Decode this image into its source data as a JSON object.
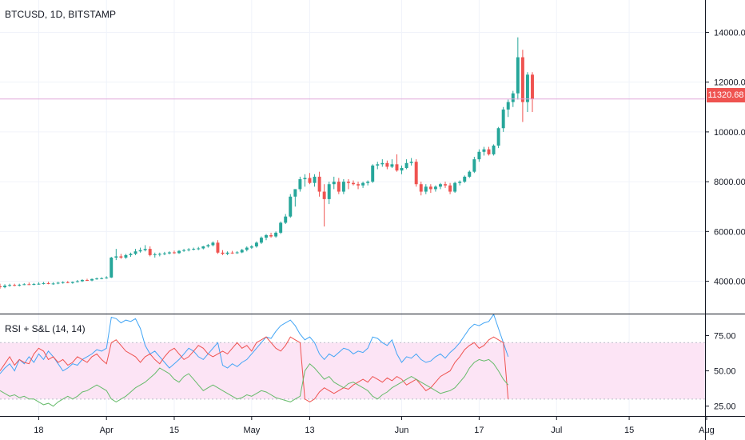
{
  "header": {
    "symbol_title": "BTCUSD, 1D, BITSTAMP"
  },
  "indicator": {
    "title": "RSI + S&L (14, 14)"
  },
  "colors": {
    "up": "#26a69a",
    "down": "#ef5350",
    "rsi": "#42a5f5",
    "strength": "#ef5350",
    "weakness": "#66bb6a",
    "band": "#fce4f5",
    "last_line": "#e1a8d9"
  },
  "chart_data": [
    {
      "type": "candlestick",
      "title": "BTCUSD, 1D, BITSTAMP",
      "x": [
        "Mar 10",
        "Mar 11",
        "Mar 12",
        "Mar 13",
        "Mar 14",
        "Mar 15",
        "Mar 16",
        "Mar 17",
        "Mar 18",
        "Mar 19",
        "Mar 20",
        "Mar 21",
        "Mar 22",
        "Mar 23",
        "Mar 24",
        "Mar 25",
        "Mar 26",
        "Mar 27",
        "Mar 28",
        "Mar 29",
        "Mar 30",
        "Mar 31",
        "Apr 1",
        "Apr 2",
        "Apr 3",
        "Apr 4",
        "Apr 5",
        "Apr 6",
        "Apr 7",
        "Apr 8",
        "Apr 9",
        "Apr 10",
        "Apr 11",
        "Apr 12",
        "Apr 13",
        "Apr 14",
        "Apr 15",
        "Apr 16",
        "Apr 17",
        "Apr 18",
        "Apr 19",
        "Apr 20",
        "Apr 21",
        "Apr 22",
        "Apr 23",
        "Apr 24",
        "Apr 25",
        "Apr 26",
        "Apr 27",
        "Apr 28",
        "Apr 29",
        "Apr 30",
        "May 1",
        "May 2",
        "May 3",
        "May 4",
        "May 5",
        "May 6",
        "May 7",
        "May 8",
        "May 9",
        "May 10",
        "May 11",
        "May 12",
        "May 13",
        "May 14",
        "May 15",
        "May 16",
        "May 17",
        "May 18",
        "May 19",
        "May 20",
        "May 21",
        "May 22",
        "May 23",
        "May 24",
        "May 25",
        "May 26",
        "May 27",
        "May 28",
        "May 29",
        "May 30",
        "May 31",
        "Jun 1",
        "Jun 2",
        "Jun 3",
        "Jun 4",
        "Jun 5",
        "Jun 6",
        "Jun 7",
        "Jun 8",
        "Jun 9",
        "Jun 10",
        "Jun 11",
        "Jun 12",
        "Jun 13",
        "Jun 14",
        "Jun 15",
        "Jun 16",
        "Jun 17",
        "Jun 18",
        "Jun 19",
        "Jun 20",
        "Jun 21",
        "Jun 22",
        "Jun 23",
        "Jun 24",
        "Jun 25",
        "Jun 26",
        "Jun 27",
        "Jun 28",
        "Jun 29"
      ],
      "ohlc": [
        [
          3800,
          3900,
          3700,
          3760
        ],
        [
          3760,
          3880,
          3720,
          3820
        ],
        [
          3820,
          3900,
          3780,
          3850
        ],
        [
          3850,
          3900,
          3800,
          3830
        ],
        [
          3830,
          3900,
          3790,
          3860
        ],
        [
          3860,
          3920,
          3840,
          3880
        ],
        [
          3880,
          3950,
          3850,
          3870
        ],
        [
          3870,
          3930,
          3840,
          3890
        ],
        [
          3890,
          3960,
          3860,
          3900
        ],
        [
          3900,
          3970,
          3870,
          3920
        ],
        [
          3920,
          3980,
          3880,
          3890
        ],
        [
          3890,
          3960,
          3860,
          3910
        ],
        [
          3910,
          3980,
          3880,
          3940
        ],
        [
          3940,
          4000,
          3900,
          3960
        ],
        [
          3960,
          4010,
          3920,
          3930
        ],
        [
          3930,
          3990,
          3900,
          3970
        ],
        [
          3970,
          4050,
          3950,
          4000
        ],
        [
          4000,
          4080,
          3970,
          4050
        ],
        [
          4050,
          4100,
          4010,
          4030
        ],
        [
          4030,
          4110,
          4000,
          4090
        ],
        [
          4090,
          4150,
          4060,
          4110
        ],
        [
          4110,
          4160,
          4080,
          4120
        ],
        [
          4120,
          4200,
          4100,
          4150
        ],
        [
          4150,
          4980,
          4130,
          4950
        ],
        [
          4950,
          5300,
          4850,
          5000
        ],
        [
          5000,
          5100,
          4900,
          4950
        ],
        [
          4950,
          5100,
          4900,
          5050
        ],
        [
          5050,
          5150,
          4980,
          5100
        ],
        [
          5100,
          5300,
          5050,
          5200
        ],
        [
          5200,
          5350,
          5150,
          5250
        ],
        [
          5250,
          5450,
          5200,
          5300
        ],
        [
          5300,
          5400,
          5000,
          5050
        ],
        [
          5050,
          5150,
          4950,
          5080
        ],
        [
          5080,
          5150,
          5000,
          5100
        ],
        [
          5100,
          5180,
          5050,
          5120
        ],
        [
          5120,
          5200,
          5080,
          5160
        ],
        [
          5160,
          5230,
          5100,
          5130
        ],
        [
          5130,
          5250,
          5100,
          5220
        ],
        [
          5220,
          5300,
          5180,
          5250
        ],
        [
          5250,
          5330,
          5200,
          5280
        ],
        [
          5280,
          5350,
          5240,
          5300
        ],
        [
          5300,
          5380,
          5250,
          5320
        ],
        [
          5320,
          5420,
          5280,
          5400
        ],
        [
          5400,
          5500,
          5350,
          5450
        ],
        [
          5450,
          5600,
          5400,
          5550
        ],
        [
          5550,
          5650,
          5100,
          5150
        ],
        [
          5150,
          5250,
          5050,
          5100
        ],
        [
          5100,
          5200,
          5050,
          5150
        ],
        [
          5150,
          5220,
          5100,
          5130
        ],
        [
          5130,
          5210,
          5100,
          5160
        ],
        [
          5160,
          5300,
          5130,
          5260
        ],
        [
          5260,
          5400,
          5200,
          5350
        ],
        [
          5350,
          5450,
          5300,
          5400
        ],
        [
          5400,
          5600,
          5350,
          5550
        ],
        [
          5550,
          5800,
          5500,
          5750
        ],
        [
          5750,
          5900,
          5650,
          5850
        ],
        [
          5850,
          5950,
          5750,
          5800
        ],
        [
          5800,
          6000,
          5750,
          5950
        ],
        [
          5950,
          6400,
          5900,
          6350
        ],
        [
          6350,
          6700,
          6300,
          6600
        ],
        [
          6600,
          7500,
          6550,
          7400
        ],
        [
          7400,
          7700,
          7000,
          7700
        ],
        [
          7700,
          8200,
          7600,
          8100
        ],
        [
          8100,
          8300,
          7800,
          8150
        ],
        [
          8150,
          8350,
          7900,
          7950
        ],
        [
          7950,
          8300,
          7800,
          8200
        ],
        [
          8200,
          8400,
          7400,
          7600
        ],
        [
          7600,
          7900,
          6200,
          7300
        ],
        [
          7300,
          8000,
          7100,
          7900
        ],
        [
          7900,
          8200,
          7700,
          8000
        ],
        [
          8000,
          8150,
          7500,
          7600
        ],
        [
          7600,
          8100,
          7500,
          8000
        ],
        [
          8000,
          8100,
          7700,
          7950
        ],
        [
          7950,
          8050,
          7850,
          7900
        ],
        [
          7900,
          8000,
          7700,
          7850
        ],
        [
          7850,
          8000,
          7750,
          7950
        ],
        [
          7950,
          8050,
          7850,
          8000
        ],
        [
          8000,
          8700,
          7950,
          8650
        ],
        [
          8650,
          8800,
          8500,
          8700
        ],
        [
          8700,
          8900,
          8600,
          8750
        ],
        [
          8750,
          8850,
          8500,
          8600
        ],
        [
          8600,
          8900,
          8550,
          8700
        ],
        [
          8700,
          9100,
          8400,
          8450
        ],
        [
          8450,
          8650,
          8300,
          8550
        ],
        [
          8550,
          8900,
          8500,
          8750
        ],
        [
          8750,
          8950,
          8650,
          8800
        ],
        [
          8800,
          8900,
          7800,
          7900
        ],
        [
          7900,
          8000,
          7450,
          7600
        ],
        [
          7600,
          7900,
          7500,
          7800
        ],
        [
          7800,
          7900,
          7550,
          7700
        ],
        [
          7700,
          7850,
          7600,
          7800
        ],
        [
          7800,
          7950,
          7700,
          7900
        ],
        [
          7900,
          8000,
          7750,
          7850
        ],
        [
          7850,
          7950,
          7500,
          7600
        ],
        [
          7600,
          8000,
          7550,
          7950
        ],
        [
          7950,
          8050,
          7850,
          8000
        ],
        [
          8000,
          8250,
          7950,
          8200
        ],
        [
          8200,
          8450,
          8150,
          8400
        ],
        [
          8400,
          9000,
          8350,
          8900
        ],
        [
          8900,
          9300,
          8800,
          9200
        ],
        [
          9200,
          9400,
          9050,
          9300
        ],
        [
          9300,
          9400,
          9050,
          9100
        ],
        [
          9100,
          9500,
          9050,
          9450
        ],
        [
          9450,
          10200,
          9350,
          10150
        ],
        [
          10150,
          11000,
          10000,
          10900
        ],
        [
          10900,
          11300,
          10600,
          11200
        ],
        [
          11200,
          11650,
          11000,
          11550
        ],
        [
          11550,
          13800,
          11300,
          13000
        ],
        [
          13000,
          13300,
          10400,
          11200
        ],
        [
          11200,
          12400,
          10800,
          12300
        ],
        [
          12300,
          12400,
          10800,
          11320
        ]
      ],
      "ylim": [
        2700,
        15300
      ],
      "yticks": [
        4000,
        6000,
        8000,
        10000,
        12000,
        14000
      ],
      "ytick_labels": [
        "4000.00",
        "6000.00",
        "8000.00",
        "10000.00",
        "12000.00",
        "14000.00"
      ],
      "last_price": 11320.68,
      "last_price_label": "11320.68"
    },
    {
      "type": "line",
      "title": "RSI + S&L (14, 14)",
      "ylim": [
        18,
        90
      ],
      "yticks": [
        25,
        50,
        75
      ],
      "ytick_labels": [
        "25.00",
        "50.00",
        "75.00"
      ],
      "band": [
        30,
        70
      ],
      "series": [
        {
          "key": "rsi",
          "values": [
            48,
            52,
            55,
            50,
            58,
            55,
            60,
            56,
            62,
            58,
            64,
            60,
            55,
            50,
            52,
            55,
            54,
            58,
            60,
            62,
            65,
            64,
            66,
            88,
            87,
            84,
            86,
            85,
            87,
            80,
            68,
            62,
            64,
            60,
            56,
            52,
            55,
            58,
            62,
            66,
            64,
            60,
            58,
            62,
            66,
            70,
            54,
            52,
            55,
            53,
            56,
            58,
            62,
            66,
            70,
            74,
            73,
            78,
            82,
            84,
            86,
            82,
            76,
            72,
            74,
            70,
            62,
            58,
            62,
            60,
            63,
            66,
            65,
            62,
            64,
            63,
            66,
            74,
            73,
            70,
            68,
            72,
            62,
            56,
            60,
            59,
            62,
            58,
            56,
            57,
            60,
            62,
            59,
            63,
            66,
            70,
            75,
            80,
            83,
            82,
            84,
            85,
            90,
            80,
            70,
            60
          ]
        },
        {
          "key": "strength",
          "values": [
            50,
            55,
            60,
            54,
            58,
            56,
            55,
            62,
            66,
            64,
            58,
            60,
            56,
            58,
            54,
            56,
            60,
            58,
            56,
            60,
            62,
            58,
            55,
            70,
            72,
            68,
            64,
            62,
            60,
            56,
            60,
            62,
            58,
            55,
            60,
            64,
            66,
            62,
            58,
            60,
            64,
            68,
            66,
            62,
            60,
            62,
            64,
            62,
            66,
            70,
            66,
            68,
            64,
            70,
            72,
            74,
            70,
            66,
            64,
            68,
            74,
            72,
            70,
            30,
            28,
            30,
            35,
            38,
            36,
            34,
            36,
            38,
            37,
            40,
            42,
            44,
            42,
            46,
            44,
            42,
            45,
            43,
            46,
            44,
            40,
            42,
            44,
            40,
            36,
            38,
            42,
            46,
            48,
            50,
            56,
            60,
            65,
            68,
            70,
            66,
            68,
            72,
            74,
            72,
            70,
            30
          ]
        },
        {
          "key": "weakness",
          "values": [
            36,
            34,
            32,
            33,
            31,
            32,
            30,
            30,
            28,
            26,
            27,
            25,
            28,
            30,
            32,
            30,
            32,
            35,
            36,
            38,
            40,
            38,
            36,
            30,
            28,
            30,
            32,
            35,
            38,
            40,
            42,
            45,
            48,
            52,
            50,
            48,
            44,
            42,
            46,
            48,
            44,
            40,
            36,
            38,
            40,
            38,
            36,
            34,
            32,
            30,
            31,
            33,
            32,
            34,
            36,
            35,
            33,
            31,
            30,
            29,
            28,
            30,
            32,
            50,
            55,
            52,
            48,
            44,
            46,
            42,
            40,
            38,
            41,
            42,
            40,
            38,
            36,
            32,
            30,
            33,
            35,
            38,
            40,
            42,
            44,
            46,
            44,
            42,
            40,
            38,
            36,
            34,
            35,
            36,
            38,
            42,
            46,
            52,
            56,
            58,
            57,
            58,
            55,
            50,
            44,
            40
          ]
        }
      ]
    }
  ],
  "time_axis": {
    "labels": [
      "18",
      "Apr",
      "15",
      "May",
      "13",
      "Jun",
      "17",
      "Jul",
      "15",
      "Aug"
    ]
  }
}
